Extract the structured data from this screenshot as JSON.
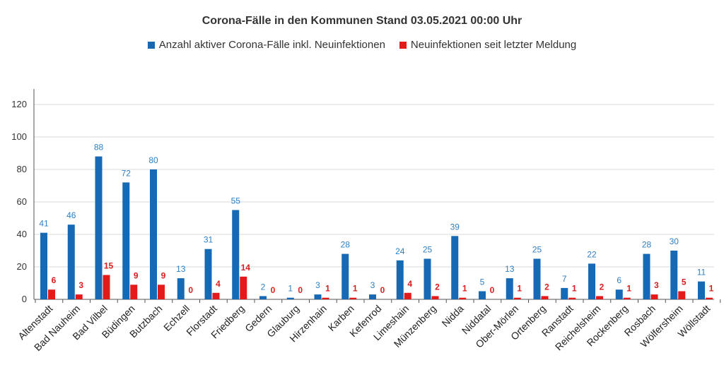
{
  "colors": {
    "active": "#1569B5",
    "new": "#E41A1A",
    "active_label": "#2F7FC1",
    "new_label": "#D81E1E",
    "grid": "#D9D9D9",
    "axis": "#555555"
  },
  "chart_data": {
    "type": "bar",
    "title": "Corona-Fälle in den Kommunen Stand 03.05.2021 00:00 Uhr",
    "xlabel": "",
    "ylabel": "",
    "ylim": [
      0,
      120
    ],
    "yticks": [
      0,
      20,
      40,
      60,
      80,
      100,
      120
    ],
    "grid": true,
    "legend_position": "top",
    "categories": [
      "Altenstadt",
      "Bad Nauheim",
      "Bad Vilbel",
      "Büdingen",
      "Butzbach",
      "Echzell",
      "Florstadt",
      "Friedberg",
      "Gedern",
      "Glauburg",
      "Hirzenhain",
      "Karben",
      "Kefenrod",
      "Limeshain",
      "Münzenberg",
      "Nidda",
      "Niddatal",
      "Ober-Mörlen",
      "Ortenberg",
      "Ranstadt",
      "Reichelsheim",
      "Rockenberg",
      "Rosbach",
      "Wölfersheim",
      "Wöllstadt"
    ],
    "series": [
      {
        "name": "Anzahl aktiver Corona-Fälle inkl. Neuinfektionen",
        "values": [
          41,
          46,
          88,
          72,
          80,
          13,
          31,
          55,
          2,
          1,
          3,
          28,
          3,
          24,
          25,
          39,
          5,
          13,
          25,
          7,
          22,
          6,
          28,
          30,
          11
        ]
      },
      {
        "name": "Neuinfektionen seit letzter Meldung",
        "values": [
          6,
          3,
          15,
          9,
          9,
          0,
          4,
          14,
          0,
          0,
          1,
          1,
          0,
          4,
          2,
          1,
          0,
          1,
          2,
          1,
          2,
          1,
          3,
          5,
          1
        ]
      }
    ]
  }
}
